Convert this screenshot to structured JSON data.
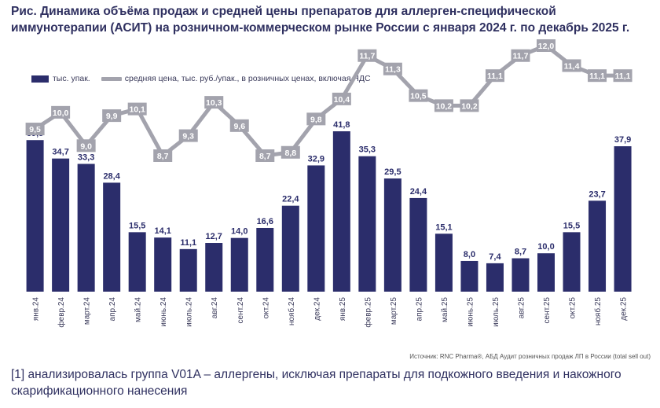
{
  "title": "Рис. Динамика объёма продаж и средней цены препаратов для аллерген-специфической иммунотерапии (АСИТ) на розничном-коммерческом рынке России с января 2024 г. по декабрь 2025 г.",
  "legend": {
    "bars": "тыс. упак.",
    "line": "средняя цена, тыс. руб./упак., в розничных ценах, включая НДС"
  },
  "source": "Источник: RNC Pharma®, АБД Аудит розничных продаж ЛП в России (total sell out)",
  "footnote": "[1] анализировалась группа V01A – аллергены, исключая препараты для подкожного введения и накожного скарификационного нанесения",
  "colors": {
    "bar": "#2b2d6b",
    "line": "#a3a3ad",
    "line_label_bg": "#a3a3ad"
  },
  "chart_data": {
    "type": "bar",
    "categories": [
      "янв.24",
      "февр.24",
      "март.24",
      "апр.24",
      "май.24",
      "июнь.24",
      "июль.24",
      "авг.24",
      "сент.24",
      "окт.24",
      "нояб.24",
      "дек.24",
      "янв.25",
      "февр.25",
      "март.25",
      "апр.25",
      "май.25",
      "июнь.25",
      "июль.25",
      "авг.25",
      "сент.25",
      "окт.25",
      "нояб.25",
      "дек.25"
    ],
    "series": [
      {
        "name": "тыс. упак.",
        "type": "bar",
        "values": [
          39.5,
          34.7,
          33.3,
          28.4,
          15.5,
          14.1,
          11.1,
          12.7,
          14.0,
          16.6,
          22.4,
          32.9,
          41.8,
          35.3,
          29.5,
          24.4,
          15.1,
          8.0,
          7.4,
          8.7,
          10.0,
          15.5,
          23.7,
          37.9
        ],
        "labels": [
          "39,5",
          "34,7",
          "33,3",
          "28,4",
          "15,5",
          "14,1",
          "11,1",
          "12,7",
          "14,0",
          "16,6",
          "22,4",
          "32,9",
          "41,8",
          "35,3",
          "29,5",
          "24,4",
          "15,1",
          "8,0",
          "7,4",
          "8,7",
          "10,0",
          "15,5",
          "23,7",
          "37,9"
        ]
      },
      {
        "name": "средняя цена, тыс. руб./упак., в розничных ценах, включая НДС",
        "type": "line",
        "values": [
          9.5,
          10.0,
          9.0,
          9.9,
          10.1,
          8.7,
          9.3,
          10.3,
          9.6,
          8.7,
          8.8,
          9.8,
          10.4,
          11.7,
          11.3,
          10.5,
          10.2,
          10.2,
          11.1,
          11.7,
          12.0,
          11.4,
          11.1,
          11.1
        ],
        "labels": [
          "9,5",
          "10,0",
          "9,0",
          "9,9",
          "10,1",
          "8,7",
          "9,3",
          "10,3",
          "9,6",
          "8,7",
          "8,8",
          "9,8",
          "10,4",
          "11,7",
          "11,3",
          "10,5",
          "10,2",
          "10,2",
          "11,1",
          "11,7",
          "12,0",
          "11,4",
          "11,1",
          "11,1"
        ]
      }
    ],
    "grid": false,
    "legend_position": "top-left"
  }
}
